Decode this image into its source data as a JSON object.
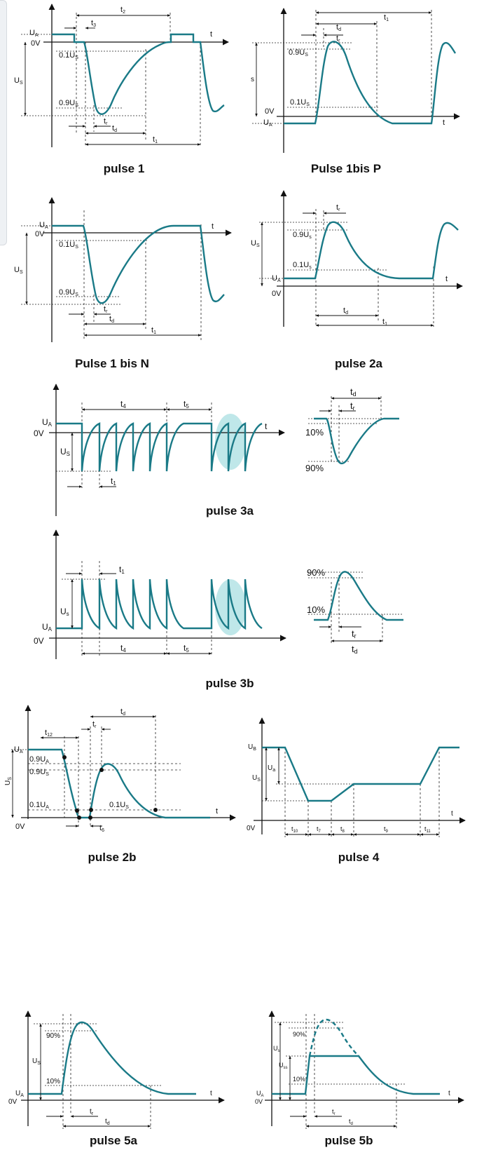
{
  "colors": {
    "wave": "#1a7a87",
    "axis": "#111111",
    "guide": "#222222",
    "highlight": "#a9dfe2"
  },
  "axis_label_t": "t",
  "label_0v": "0V",
  "pulse1": {
    "caption": "pulse 1",
    "ua": "U",
    "ua_sub": "A",
    "us": "U",
    "us_sub": "S",
    "t2": "t",
    "t2_sub": "2",
    "t3": "t",
    "t3_sub": "3",
    "tr": "t",
    "tr_sub": "r",
    "td": "t",
    "td_sub": "d",
    "t1": "t",
    "t1_sub": "1",
    "p10": "0.1U",
    "p10_sub": "S",
    "p90": "0.9U",
    "p90_sub": "S"
  },
  "pulse1bisP": {
    "caption": "Pulse 1bis P",
    "ua": "U",
    "ua_sub": "A",
    "s": "s",
    "t1": "t",
    "t1_sub": "1",
    "td": "t",
    "td_sub": "d",
    "tr": "t",
    "tr_sub": "r",
    "p90": "0.9U",
    "p90_sub": "S",
    "p10": "0.1U",
    "p10_sub": "S"
  },
  "pulse1bisN": {
    "caption": "Pulse 1 bis N",
    "ua": "U",
    "ua_sub": "A",
    "us": "U",
    "us_sub": "S",
    "p10": "0.1U",
    "p10_sub": "S",
    "p90": "0.9U",
    "p90_sub": "S",
    "tr": "t",
    "tr_sub": "r",
    "td": "t",
    "td_sub": "d",
    "t1": "t",
    "t1_sub": "1"
  },
  "pulse2a": {
    "caption": "pulse 2a",
    "ua": "U",
    "ua_sub": "A",
    "us": "U",
    "us_sub": "S",
    "tr": "t",
    "tr_sub": "r",
    "td": "t",
    "td_sub": "d",
    "t1": "t",
    "t1_sub": "1",
    "p90": "0.9U",
    "p90_sub": "s",
    "p10": "0.1U",
    "p10_sub": "s"
  },
  "pulse3a": {
    "caption": "pulse 3a",
    "ua": "U",
    "ua_sub": "A",
    "us": "U",
    "us_sub": "S",
    "t4": "t",
    "t4_sub": "4",
    "t5": "t",
    "t5_sub": "5",
    "t1": "t",
    "t1_sub": "1",
    "detail_td": "t",
    "detail_td_sub": "d",
    "detail_tr": "t",
    "detail_tr_sub": "r",
    "detail_10": "10%",
    "detail_90": "90%"
  },
  "pulse3b": {
    "caption": "pulse 3b",
    "ua": "U",
    "ua_sub": "A",
    "us": "U",
    "us_sub": "s",
    "t1": "t",
    "t1_sub": "1",
    "t4": "t",
    "t4_sub": "4",
    "t5": "t",
    "t5_sub": "5",
    "detail_90": "90%",
    "detail_10": "10%",
    "detail_tr": "t",
    "detail_tr_sub": "r",
    "detail_td": "t",
    "detail_td_sub": "d"
  },
  "pulse2b": {
    "caption": "pulse 2b",
    "ua": "U",
    "ua_sub": "A",
    "us": "U",
    "us_sub": "S",
    "t12": "t",
    "t12_sub": "12",
    "tr": "t",
    "tr_sub": "r",
    "td": "t",
    "td_sub": "d",
    "t6": "t",
    "t6_sub": "6",
    "p90a": "0.9U",
    "p90a_sub": "A",
    "p90s": "0.9U",
    "p90s_sub": "S",
    "p10a": "0.1U",
    "p10a_sub": "A",
    "p10s": "0.1U",
    "p10s_sub": "S"
  },
  "pulse4": {
    "caption": "pulse 4",
    "ub": "U",
    "ub_sub": "B",
    "ua": "U",
    "ua_sub": "a",
    "us": "U",
    "us_sub": "S",
    "t10": "t",
    "t10_sub": "10",
    "t7": "t",
    "t7_sub": "7",
    "t8": "t",
    "t8_sub": "8",
    "t9": "t",
    "t9_sub": "9",
    "t11": "t",
    "t11_sub": "11"
  },
  "pulse5a": {
    "caption": "pulse 5a",
    "ua": "U",
    "ua_sub": "A",
    "us": "U",
    "us_sub": "S",
    "p90": "90%",
    "p10": "10%",
    "tr": "t",
    "tr_sub": "r",
    "td": "t",
    "td_sub": "d"
  },
  "pulse5b": {
    "caption": "pulse 5b",
    "ua": "U",
    "ua_sub": "A",
    "us": "U",
    "us_sub": "s",
    "uss": "U",
    "uss_sub": "ss",
    "p90": "90%",
    "p10": "10%",
    "tr": "t",
    "tr_sub": "r",
    "td": "t",
    "td_sub": "d"
  }
}
